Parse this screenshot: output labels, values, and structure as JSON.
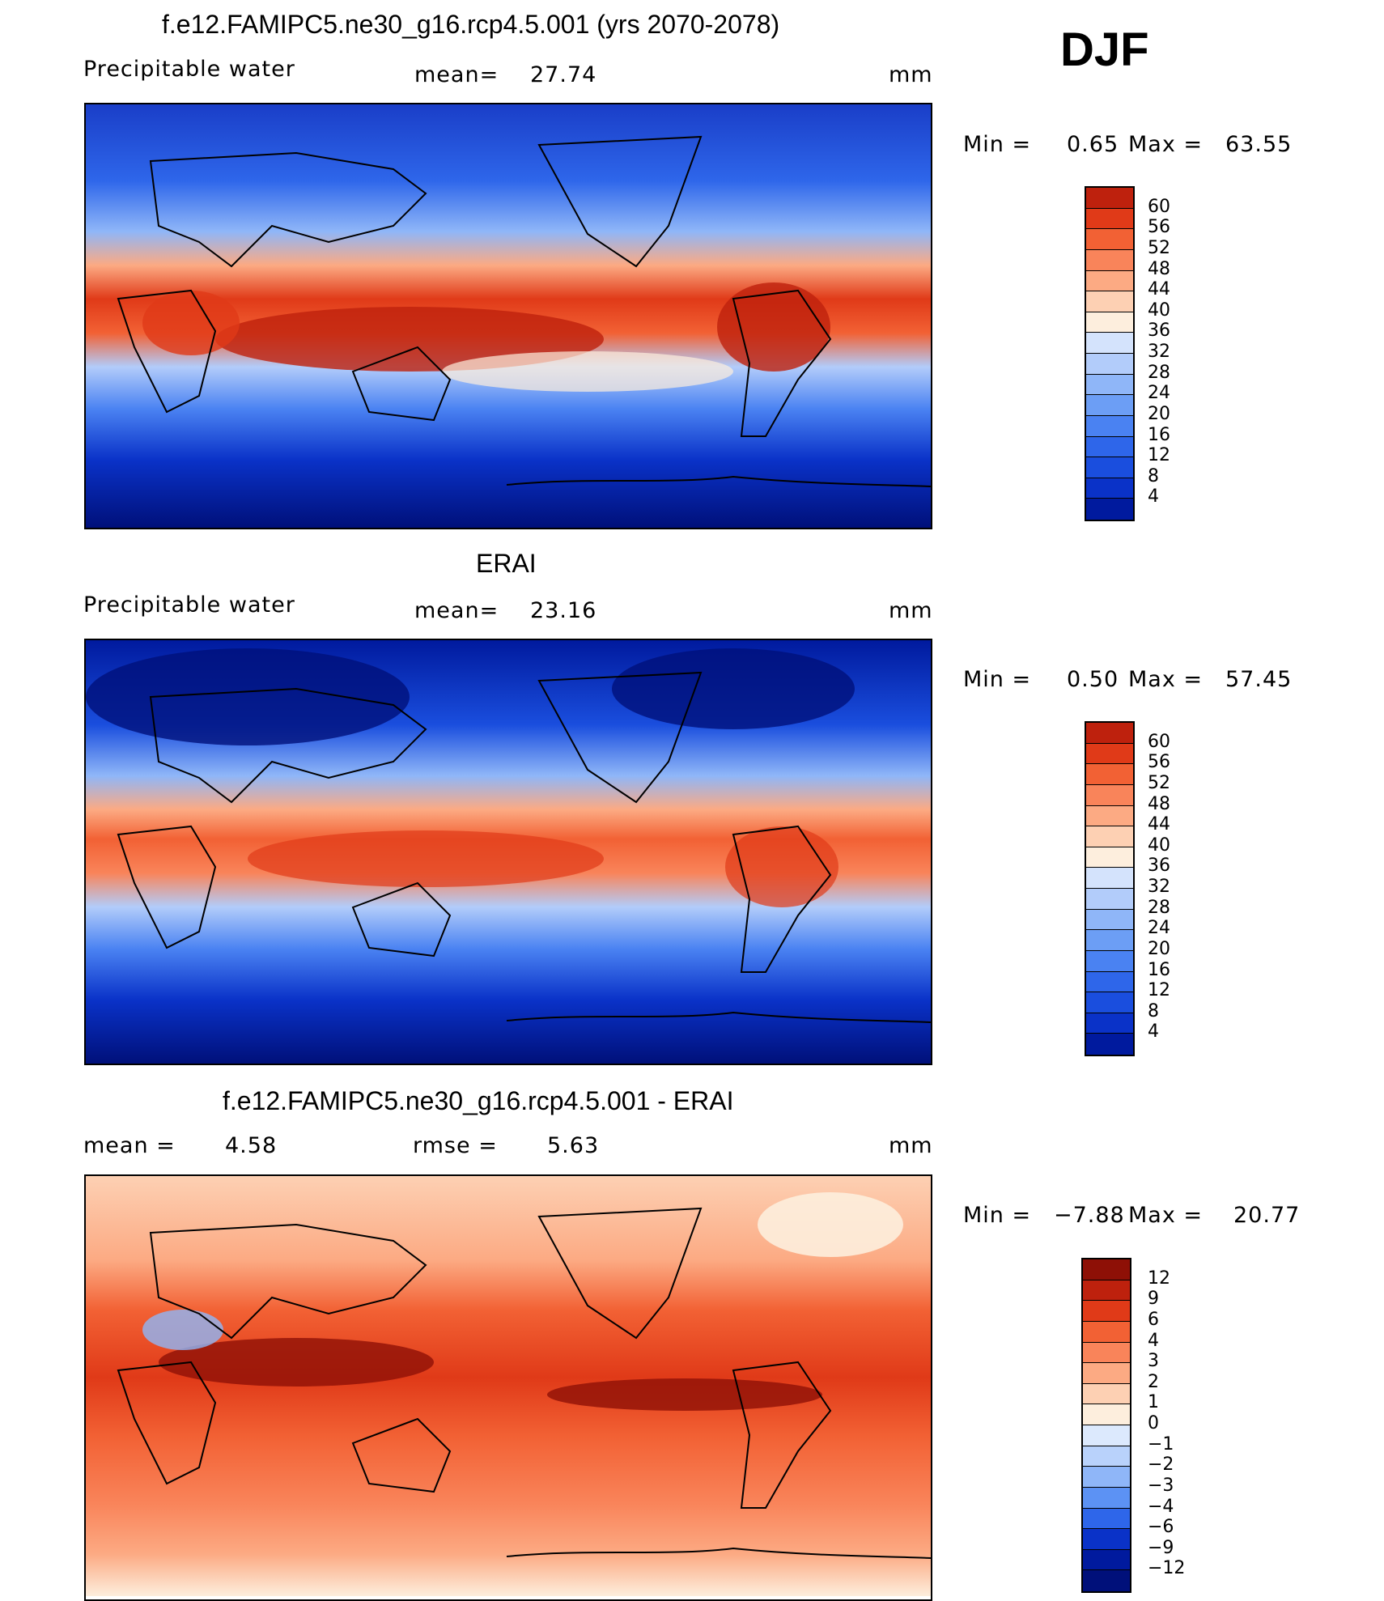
{
  "season": "DJF",
  "colors": {
    "pw_scale": [
      "#00107a",
      "#001a9e",
      "#0a32c8",
      "#1a4ede",
      "#2e66ea",
      "#4a82f2",
      "#6c9ef5",
      "#8fb6f8",
      "#b2ccfa",
      "#d4e3fc",
      "#fdeedd",
      "#fdd0b3",
      "#fcaa83",
      "#f9845a",
      "#f26134",
      "#e03a18",
      "#be210d",
      "#8e1006"
    ],
    "diff_scale": [
      "#00107a",
      "#001a9e",
      "#0a32c8",
      "#2e66ea",
      "#5c92f4",
      "#8fb6f8",
      "#b9d2fb",
      "#dce9fd",
      "#fdeedd",
      "#fdd0b3",
      "#fcaa83",
      "#f9845a",
      "#f26134",
      "#e03a18",
      "#be210d",
      "#8e1006"
    ]
  },
  "chart_data": [
    {
      "type": "heatmap",
      "title": "f.e12.FAMIPC5.ne30_g16.rcp4.5.001 (yrs 2070-2078)",
      "variable": "Precipitable water",
      "mean_label": "mean=",
      "mean": "27.74",
      "units": "mm",
      "min_label": "Min =",
      "min": "0.65",
      "max_label": "Max =",
      "max": "63.55",
      "levels": [
        "60",
        "56",
        "52",
        "48",
        "44",
        "40",
        "36",
        "32",
        "28",
        "24",
        "20",
        "16",
        "12",
        "8",
        "4"
      ]
    },
    {
      "type": "heatmap",
      "title": "ERAI",
      "variable": "Precipitable water",
      "mean_label": "mean=",
      "mean": "23.16",
      "units": "mm",
      "min_label": "Min =",
      "min": "0.50",
      "max_label": "Max =",
      "max": "57.45",
      "levels": [
        "60",
        "56",
        "52",
        "48",
        "44",
        "40",
        "36",
        "32",
        "28",
        "24",
        "20",
        "16",
        "12",
        "8",
        "4"
      ]
    },
    {
      "type": "heatmap",
      "title": "f.e12.FAMIPC5.ne30_g16.rcp4.5.001 - ERAI",
      "mean_label": "mean =",
      "mean": "4.58",
      "rmse_label": "rmse =",
      "rmse": "5.63",
      "units": "mm",
      "min_label": "Min =",
      "min": "−7.88",
      "max_label": "Max =",
      "max": "20.77",
      "levels": [
        "12",
        "9",
        "6",
        "4",
        "3",
        "2",
        "1",
        "0",
        "−1",
        "−2",
        "−3",
        "−4",
        "−6",
        "−9",
        "−12"
      ]
    }
  ]
}
